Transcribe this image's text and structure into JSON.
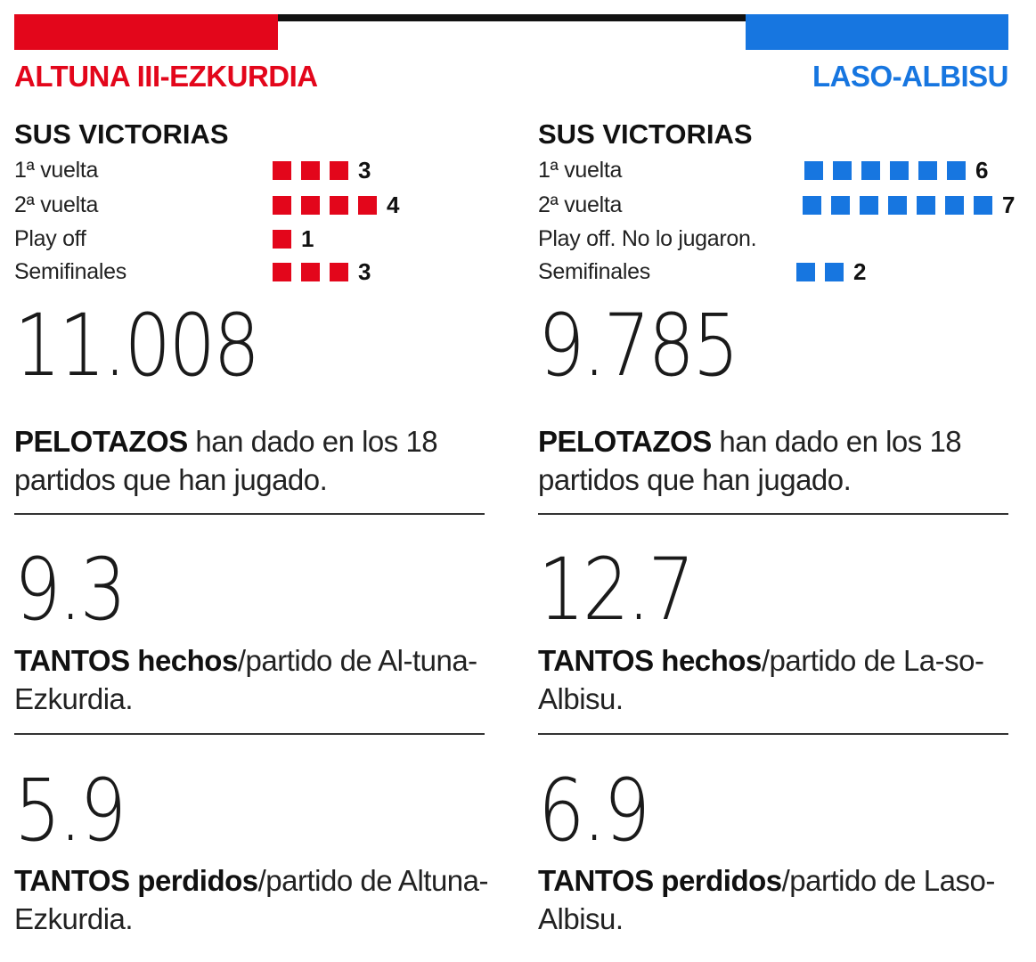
{
  "colors": {
    "left_team": "#e3061b",
    "right_team": "#1776e0",
    "rule": "#111111"
  },
  "chart_data": {
    "type": "table",
    "teams": [
      {
        "name": "ALTUNA III-EZKURDIA",
        "color": "#e3061b",
        "victories_title": "SUS VICTORIAS",
        "victories": [
          {
            "round": "1ª vuelta",
            "count": 3,
            "count_label": "3"
          },
          {
            "round": "2ª vuelta",
            "count": 4,
            "count_label": "4"
          },
          {
            "round": "Play off",
            "count": 1,
            "count_label": "1"
          },
          {
            "round": "Semifinales",
            "count": 3,
            "count_label": "3"
          }
        ],
        "pelotazos": {
          "value": "11.008",
          "bold": "PELOTAZOS",
          "text": " han dado en los 18 partidos que han jugado."
        },
        "tantos_hechos": {
          "value": "9.3",
          "bold": "TANTOS hechos",
          "text": "/partido de Al-tuna-Ezkurdia."
        },
        "tantos_perdidos": {
          "value": "5.9",
          "bold": "TANTOS perdidos",
          "text": "/partido de Altuna-Ezkurdia."
        }
      },
      {
        "name": "LASO-ALBISU",
        "color": "#1776e0",
        "victories_title": "SUS VICTORIAS",
        "victories": [
          {
            "round": "1ª vuelta",
            "count": 6,
            "count_label": "6"
          },
          {
            "round": "2ª vuelta",
            "count": 7,
            "count_label": "7"
          },
          {
            "round": "Play off. No lo jugaron.",
            "count": 0,
            "count_label": ""
          },
          {
            "round": "Semifinales",
            "count": 2,
            "count_label": "2"
          }
        ],
        "pelotazos": {
          "value": "9.785",
          "bold": "PELOTAZOS",
          "text": " han dado en los 18 partidos que han jugado."
        },
        "tantos_hechos": {
          "value": "12.7",
          "bold": "TANTOS hechos",
          "text": "/partido de La-so-Albisu."
        },
        "tantos_perdidos": {
          "value": "6.9",
          "bold": "TANTOS perdidos",
          "text": "/partido de Laso-Albisu."
        }
      }
    ]
  }
}
